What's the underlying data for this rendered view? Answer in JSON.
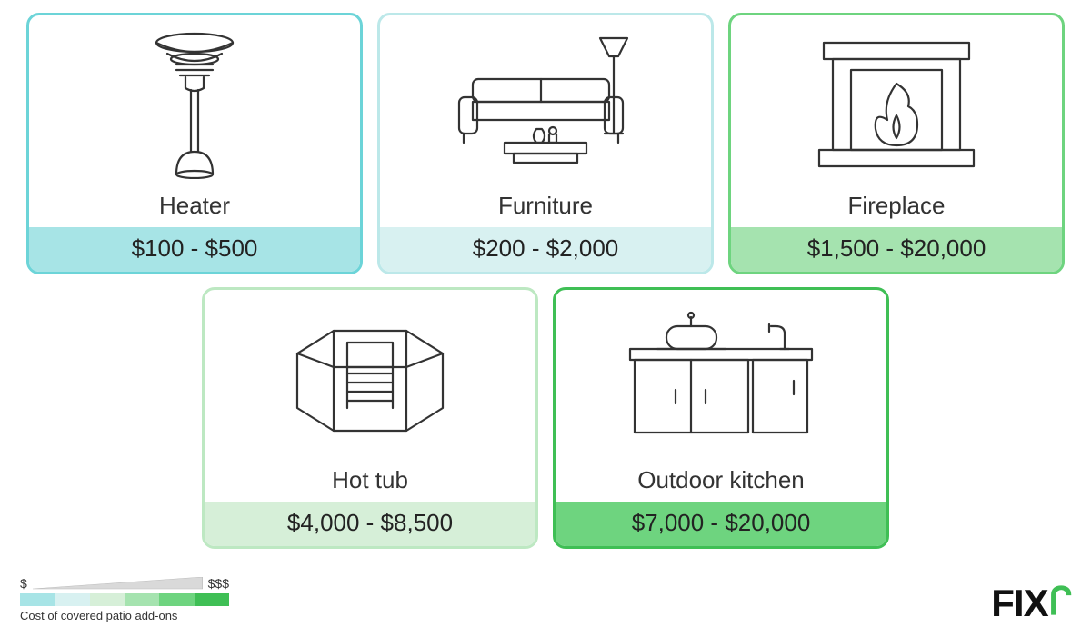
{
  "cards": [
    {
      "label": "Heater",
      "price": "$100 - $500",
      "border": "#6cd4d8",
      "bar": "#a7e4e6"
    },
    {
      "label": "Furniture",
      "price": "$200 - $2,000",
      "border": "#bce8e9",
      "bar": "#d8f1f1"
    },
    {
      "label": "Fireplace",
      "price": "$1,500 - $20,000",
      "border": "#6ed47f",
      "bar": "#a5e3af"
    },
    {
      "label": "Hot tub",
      "price": "$4,000 - $8,500",
      "border": "#bde8c2",
      "bar": "#d6efd8"
    },
    {
      "label": "Outdoor kitchen",
      "price": "$7,000 - $20,000",
      "border": "#3fbf55",
      "bar": "#6ed47f"
    }
  ],
  "legend": {
    "low": "$",
    "high": "$$$",
    "label": "Cost of covered patio add-ons",
    "swatches": [
      "#a7e4e6",
      "#d8f1f1",
      "#d6efd8",
      "#a5e3af",
      "#6ed47f",
      "#3fbf55"
    ]
  },
  "brand": {
    "name": "FIX",
    "accent": "ᒋ"
  },
  "layout": {
    "rows": [
      [
        0,
        1,
        2
      ],
      [
        3,
        4
      ]
    ]
  },
  "background": "#ffffff"
}
